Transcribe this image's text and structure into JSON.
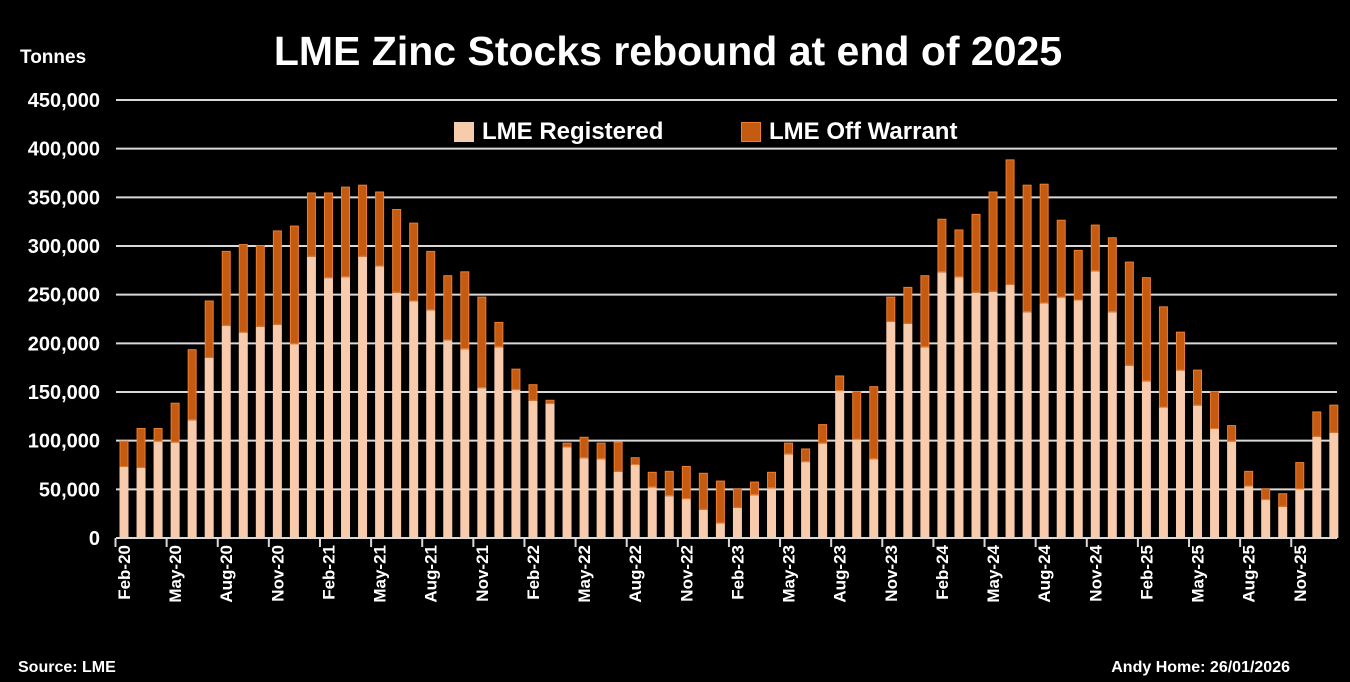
{
  "chart_data": {
    "type": "bar",
    "stacked": true,
    "title": "LME Zinc Stocks rebound at end of 2025",
    "ylabel": "Tonnes",
    "ylim": [
      0,
      450000
    ],
    "yticks": [
      0,
      50000,
      100000,
      150000,
      200000,
      250000,
      300000,
      350000,
      400000,
      450000
    ],
    "ytick_labels": [
      "0",
      "50,000",
      "100,000",
      "150,000",
      "200,000",
      "250,000",
      "300,000",
      "350,000",
      "400,000",
      "450,000"
    ],
    "grid": true,
    "legend_position": "top-center",
    "categories": [
      "Feb-20",
      "Mar-20",
      "Apr-20",
      "May-20",
      "Jun-20",
      "Jul-20",
      "Aug-20",
      "Sep-20",
      "Oct-20",
      "Nov-20",
      "Dec-20",
      "Jan-21",
      "Feb-21",
      "Mar-21",
      "Apr-21",
      "May-21",
      "Jun-21",
      "Jul-21",
      "Aug-21",
      "Sep-21",
      "Oct-21",
      "Nov-21",
      "Dec-21",
      "Jan-22",
      "Feb-22",
      "Mar-22",
      "Apr-22",
      "May-22",
      "Jun-22",
      "Jul-22",
      "Aug-22",
      "Sep-22",
      "Oct-22",
      "Nov-22",
      "Dec-22",
      "Jan-23",
      "Feb-23",
      "Mar-23",
      "Apr-23",
      "May-23",
      "Jun-23",
      "Jul-23",
      "Aug-23",
      "Sep-23",
      "Oct-23",
      "Nov-23",
      "Dec-23",
      "Jan-24",
      "Feb-24",
      "Mar-24",
      "Apr-24",
      "May-24",
      "Jun-24",
      "Jul-24",
      "Aug-24",
      "Sep-24",
      "Oct-24",
      "Nov-24",
      "Dec-24",
      "Jan-25",
      "Feb-25",
      "Mar-25",
      "Apr-25",
      "May-25",
      "Jun-25",
      "Jul-25",
      "Aug-25",
      "Sep-25",
      "Oct-25",
      "Nov-25",
      "Dec-25",
      "Jan-26"
    ],
    "series": [
      {
        "name": "LME Registered",
        "color": "#F8CBAD",
        "values": [
          73000,
          72000,
          99000,
          98000,
          121000,
          185000,
          218000,
          211000,
          217000,
          219000,
          199000,
          289000,
          267000,
          268000,
          289000,
          279000,
          252000,
          243000,
          234000,
          203000,
          194000,
          154000,
          196000,
          152000,
          141000,
          138000,
          93000,
          82000,
          81000,
          68000,
          75000,
          52000,
          43000,
          40000,
          29000,
          15000,
          31000,
          44000,
          51000,
          86000,
          78000,
          97000,
          151000,
          101000,
          81000,
          222000,
          220000,
          196000,
          273000,
          268000,
          252000,
          253000,
          260000,
          232000,
          241000,
          247000,
          244000,
          274000,
          232000,
          177000,
          161000,
          134000,
          172000,
          136000,
          112000,
          99000,
          53000,
          39000,
          32000,
          50000,
          104000,
          108000
        ]
      },
      {
        "name": "LME Off Warrant",
        "color": "#C55A11",
        "values": [
          27000,
          41000,
          14000,
          41000,
          73000,
          59000,
          77000,
          91000,
          84000,
          97000,
          122000,
          66000,
          88000,
          93000,
          74000,
          77000,
          86000,
          81000,
          61000,
          67000,
          80000,
          94000,
          26000,
          22000,
          17000,
          4000,
          5000,
          22000,
          17000,
          31000,
          8000,
          16000,
          26000,
          34000,
          38000,
          44000,
          20000,
          14000,
          17000,
          12000,
          14000,
          20000,
          16000,
          50000,
          75000,
          26000,
          38000,
          74000,
          55000,
          49000,
          81000,
          103000,
          129000,
          131000,
          123000,
          80000,
          52000,
          48000,
          77000,
          107000,
          107000,
          104000,
          40000,
          37000,
          39000,
          17000,
          16000,
          12000,
          14000,
          28000,
          26000,
          29000
        ]
      }
    ]
  },
  "source": "Source: LME",
  "author": "Andy Home: 26/01/2026"
}
